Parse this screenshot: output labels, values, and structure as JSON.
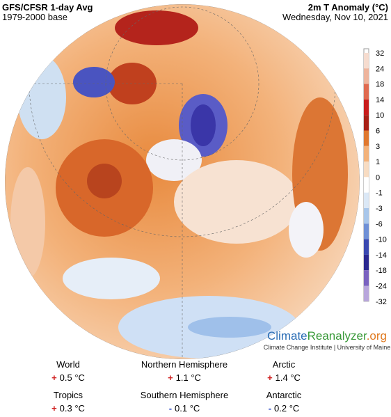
{
  "header": {
    "title": "GFS/CFSR 1-day Avg",
    "subtitle": "1979-2000 base",
    "variable": "2m T Anomaly (°C)",
    "date": "Wednesday, Nov 10, 2021"
  },
  "colorbar": {
    "labels": [
      "32",
      "24",
      "18",
      "14",
      "10",
      "6",
      "3",
      "1",
      "0",
      "-1",
      "-3",
      "-6",
      "-10",
      "-14",
      "-18",
      "-24",
      "-32"
    ]
  },
  "logo": {
    "parts": [
      "Climate",
      "Reanalyzer",
      ".org"
    ],
    "credit": "Climate Change Institute | University of Maine"
  },
  "stats": [
    {
      "label": "World",
      "sign": "+",
      "value": "0.5 °C"
    },
    {
      "label": "Northern Hemisphere",
      "sign": "+",
      "value": "1.1 °C"
    },
    {
      "label": "Arctic",
      "sign": "+",
      "value": "1.4 °C"
    },
    {
      "label": "Tropics",
      "sign": "+",
      "value": "0.3 °C"
    },
    {
      "label": "Southern Hemisphere",
      "sign": "-",
      "value": "0.1 °C"
    },
    {
      "label": "Antarctic",
      "sign": "-",
      "value": "0.2 °C"
    }
  ]
}
